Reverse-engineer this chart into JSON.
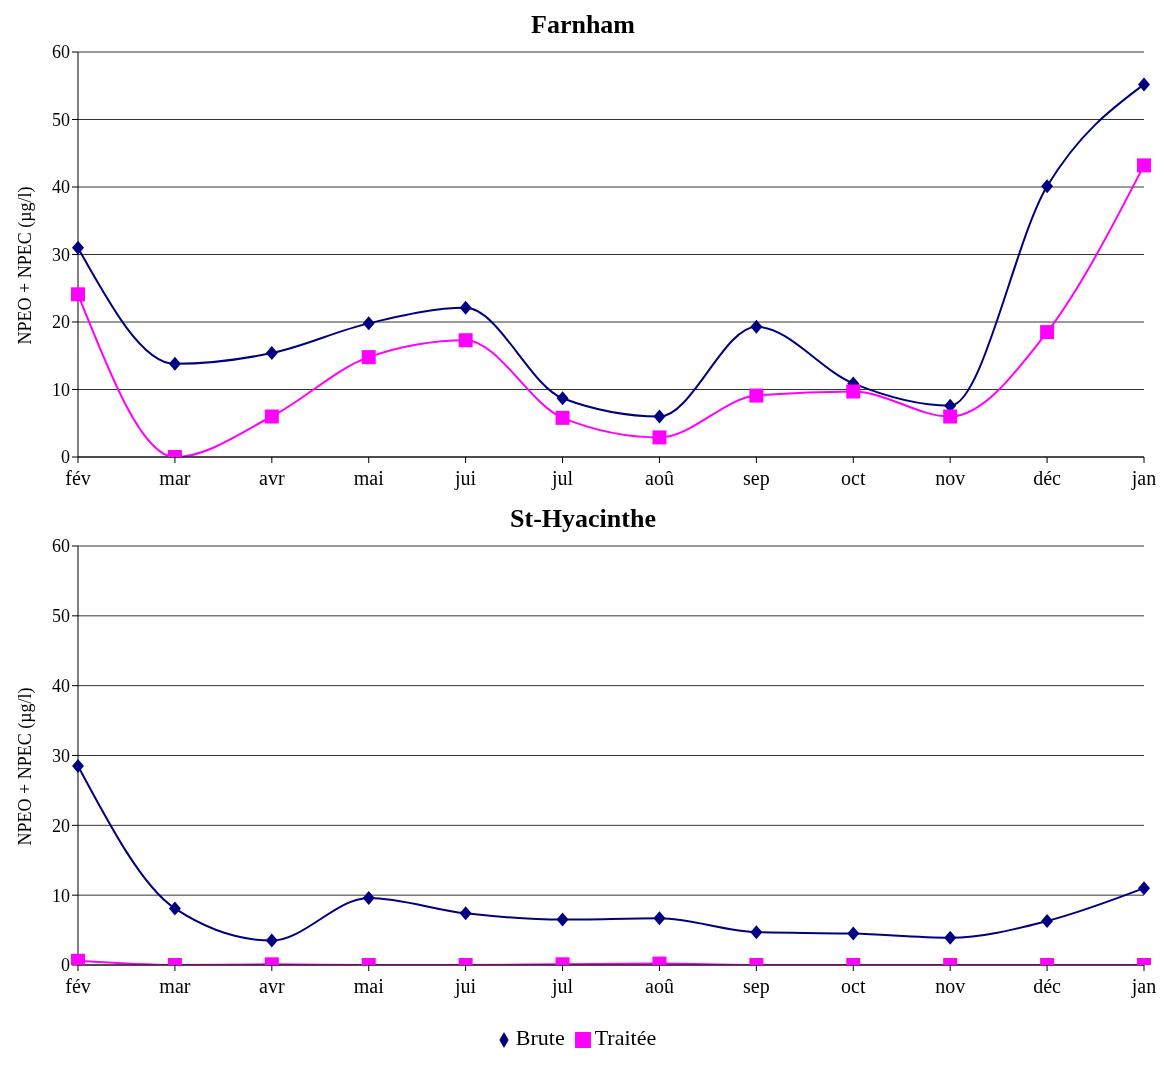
{
  "chart_data": [
    {
      "type": "line",
      "title": "Farnham",
      "ylabel": "NPEO + NPEC (µg/l)",
      "categories": [
        "fév",
        "mar",
        "avr",
        "mai",
        "jui",
        "jul",
        "aoû",
        "sep",
        "oct",
        "nov",
        "déc",
        "jan"
      ],
      "series": [
        {
          "color": "#000080",
          "marker": "diamond",
          "values": [
            31,
            13.8,
            15.4,
            19.8,
            22.1,
            8.7,
            6,
            19.3,
            10.9,
            7.6,
            40.1,
            55.2
          ]
        },
        {
          "color": "#ff00ff",
          "marker": "square",
          "values": [
            24.1,
            0,
            6,
            14.8,
            17.3,
            5.8,
            2.9,
            9.1,
            9.7,
            6,
            18.5,
            43.2
          ]
        }
      ],
      "ylim": [
        0,
        60
      ],
      "yticks": [
        0,
        10,
        20,
        30,
        40,
        50,
        60
      ],
      "grid": "y",
      "legend": false
    },
    {
      "type": "line",
      "title": "St-Hyacinthe",
      "ylabel": "NPEO + NPEC (µg/l)",
      "categories": [
        "fév",
        "mar",
        "avr",
        "mai",
        "jui",
        "jul",
        "aoû",
        "sep",
        "oct",
        "nov",
        "déc",
        "jan"
      ],
      "series": [
        {
          "name": "Brute",
          "color": "#000080",
          "marker": "diamond",
          "values": [
            28.5,
            8.1,
            3.5,
            9.6,
            7.4,
            6.5,
            6.7,
            4.7,
            4.5,
            3.9,
            6.3,
            11
          ]
        },
        {
          "name": "Traitée",
          "color": "#ff00ff",
          "marker": "square",
          "values": [
            0.6,
            0,
            0.1,
            0,
            0,
            0.1,
            0.2,
            0,
            0,
            0,
            0,
            0
          ]
        }
      ],
      "ylim": [
        0,
        60
      ],
      "yticks": [
        0,
        10,
        20,
        30,
        40,
        50,
        60
      ],
      "grid": "y",
      "legend": "bottom"
    }
  ]
}
